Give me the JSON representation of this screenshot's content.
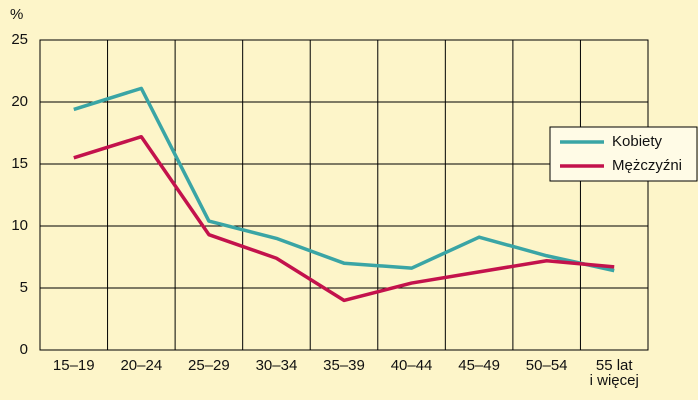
{
  "chart_data": {
    "type": "line",
    "y_unit": "%",
    "categories": [
      "15–19",
      "20–24",
      "25–29",
      "30–34",
      "35–39",
      "40–44",
      "45–49",
      "50–54",
      "55 lat\ni więcej"
    ],
    "series": [
      {
        "name": "Kobiety",
        "color": "#3aa5a5",
        "values": [
          19.4,
          21.1,
          10.4,
          9.0,
          7.0,
          6.6,
          9.1,
          7.6,
          6.4
        ]
      },
      {
        "name": "Mężczyźni",
        "color": "#c3124c",
        "values": [
          15.5,
          17.2,
          9.3,
          7.4,
          4.0,
          5.4,
          6.3,
          7.2,
          6.7
        ]
      }
    ],
    "ylim": [
      0,
      25
    ],
    "yticks": [
      0,
      5,
      10,
      15,
      20,
      25
    ],
    "grid": true,
    "legend": "right"
  }
}
